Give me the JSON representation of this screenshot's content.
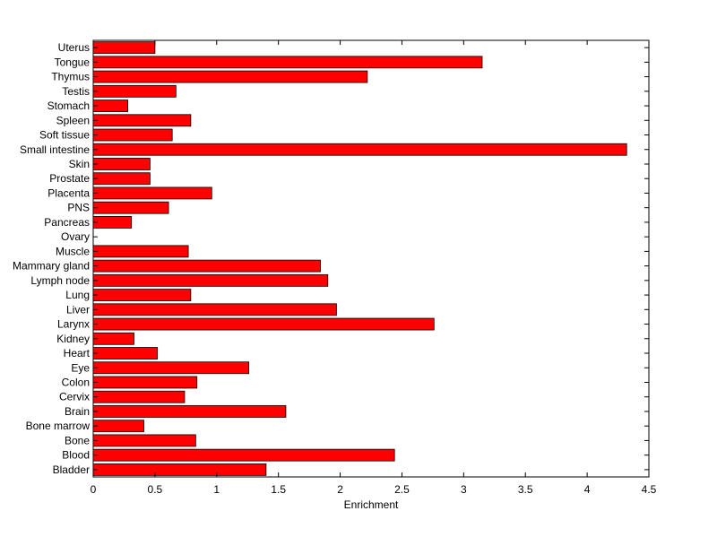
{
  "chart_data": {
    "type": "bar",
    "orientation": "horizontal",
    "xlabel": "Enrichment",
    "ylabel": "",
    "title": "",
    "xlim": [
      0,
      4.5
    ],
    "xticks": [
      0,
      0.5,
      1,
      1.5,
      2,
      2.5,
      3,
      3.5,
      4,
      4.5
    ],
    "xtick_labels": [
      "0",
      "0.5",
      "1",
      "1.5",
      "2",
      "2.5",
      "3",
      "3.5",
      "4",
      "4.5"
    ],
    "grid": false,
    "legend": "none",
    "colors": {
      "bar_fill": "#ff0000",
      "bar_edge": "#000000",
      "axes": "#000000",
      "background": "#ffffff"
    },
    "categories": [
      "Bladder",
      "Blood",
      "Bone",
      "Bone marrow",
      "Brain",
      "Cervix",
      "Colon",
      "Eye",
      "Heart",
      "Kidney",
      "Larynx",
      "Liver",
      "Lung",
      "Lymph node",
      "Mammary gland",
      "Muscle",
      "Ovary",
      "Pancreas",
      "PNS",
      "Placenta",
      "Prostate",
      "Skin",
      "Small intestine",
      "Soft tissue",
      "Spleen",
      "Stomach",
      "Testis",
      "Thymus",
      "Tongue",
      "Uterus"
    ],
    "values": [
      1.4,
      2.44,
      0.83,
      0.41,
      1.56,
      0.74,
      0.84,
      1.26,
      0.52,
      0.33,
      2.76,
      1.97,
      0.79,
      1.9,
      1.84,
      0.77,
      0.0,
      0.31,
      0.61,
      0.96,
      0.46,
      0.46,
      4.32,
      0.64,
      0.79,
      0.28,
      0.67,
      2.22,
      3.15,
      0.5
    ]
  }
}
